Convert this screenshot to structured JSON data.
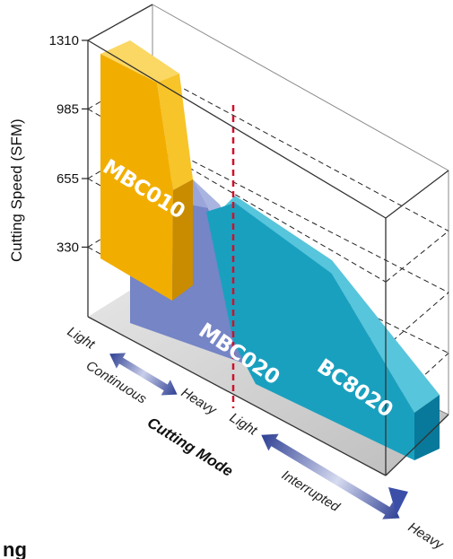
{
  "chart_data": {
    "type": "area",
    "title": "",
    "ylabel": "Cutting Speed (SFM)",
    "y_ticks": [
      "1310",
      "985",
      "655",
      "330"
    ],
    "y_tick_values": [
      1310,
      985,
      655,
      330
    ],
    "ylim": [
      0,
      1310
    ],
    "x_title": "Cutting Mode",
    "x_labels": {
      "light_1": "Light",
      "continuous": "Continuous",
      "heavy_1": "Heavy",
      "light_2": "Light",
      "interrupted": "Interrupted",
      "heavy_2": "Heavy"
    },
    "grid": true,
    "series": [
      {
        "name": "MBC010",
        "color": "#f6b400"
      },
      {
        "name": "MBC020",
        "color": "#7d8ec9"
      },
      {
        "name": "BC8020",
        "color": "#1aa6c4"
      }
    ]
  },
  "footer": {
    "fragment": "ng"
  }
}
